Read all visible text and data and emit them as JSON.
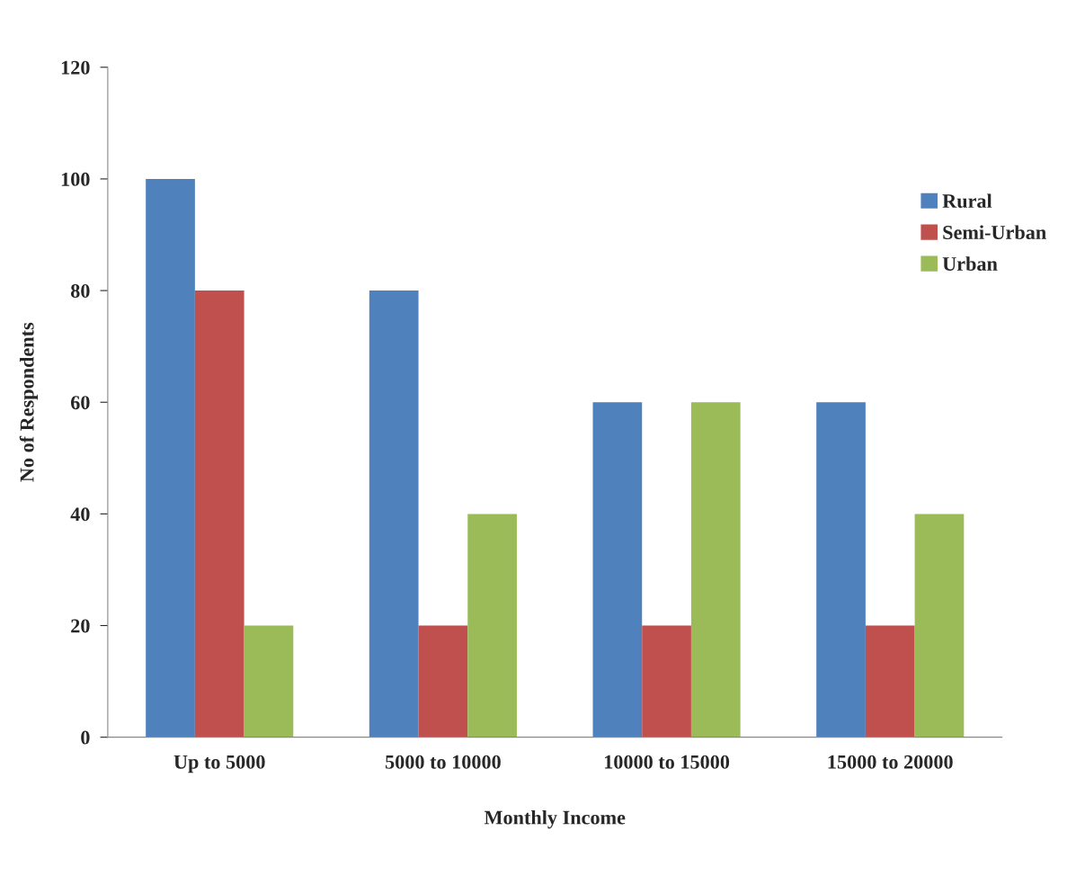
{
  "chart_data": {
    "type": "bar",
    "xlabel": "Monthly Income",
    "ylabel": "No of Respondents",
    "categories": [
      "Up to 5000",
      "5000 to 10000",
      "10000 to 15000",
      "15000 to 20000"
    ],
    "series": [
      {
        "name": "Rural",
        "color": "#4f81bd",
        "values": [
          100,
          80,
          60,
          60
        ]
      },
      {
        "name": "Semi-Urban",
        "color": "#c0504d",
        "values": [
          80,
          20,
          20,
          20
        ]
      },
      {
        "name": "Urban",
        "color": "#9bbb59",
        "values": [
          20,
          40,
          60,
          40
        ]
      }
    ],
    "ylim": [
      0,
      120
    ],
    "yticks": [
      0,
      20,
      40,
      60,
      80,
      100,
      120
    ],
    "grid": false,
    "legend": "top right"
  }
}
